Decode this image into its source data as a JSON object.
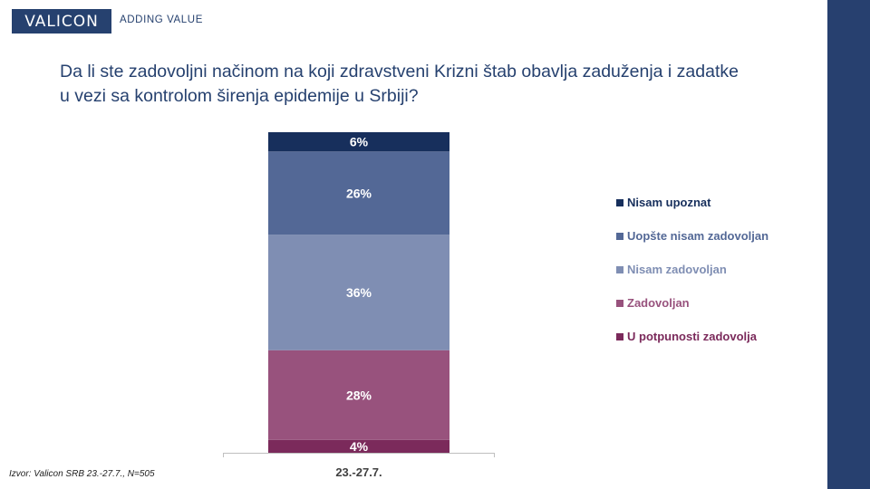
{
  "brand": {
    "logo_text": "VALICON",
    "tagline": "ADDING VALUE"
  },
  "title_lines": [
    "Da li ste zadovoljni načinom na koji zdravstveni Krizni štab obavlja zaduženja i zadatke",
    "u vezi sa kontrolom širenja epidemije u Srbiji?"
  ],
  "source": "Izvor: Valicon SRB 23.-27.7., N=505",
  "colors": {
    "brand": "#26416f",
    "right_bar": "#27406f"
  },
  "chart_data": {
    "type": "bar",
    "stacked": true,
    "categories": [
      "23.-27.7."
    ],
    "series": [
      {
        "name": "U potpunosti zadovolja",
        "values": [
          4
        ],
        "label": "4%",
        "color": "#7b2a5b"
      },
      {
        "name": "Zadovoljan",
        "values": [
          28
        ],
        "label": "28%",
        "color": "#98527d"
      },
      {
        "name": "Nisam zadovoljan",
        "values": [
          36
        ],
        "label": "36%",
        "color": "#7f8eb3"
      },
      {
        "name": "Uopšte nisam zadovoljan",
        "values": [
          26
        ],
        "label": "26%",
        "color": "#536896"
      },
      {
        "name": "Nisam upoznat",
        "values": [
          6
        ],
        "label": "6%",
        "color": "#172f5c"
      }
    ],
    "ylim": [
      0,
      100
    ],
    "legend_position": "right",
    "grid": false
  }
}
